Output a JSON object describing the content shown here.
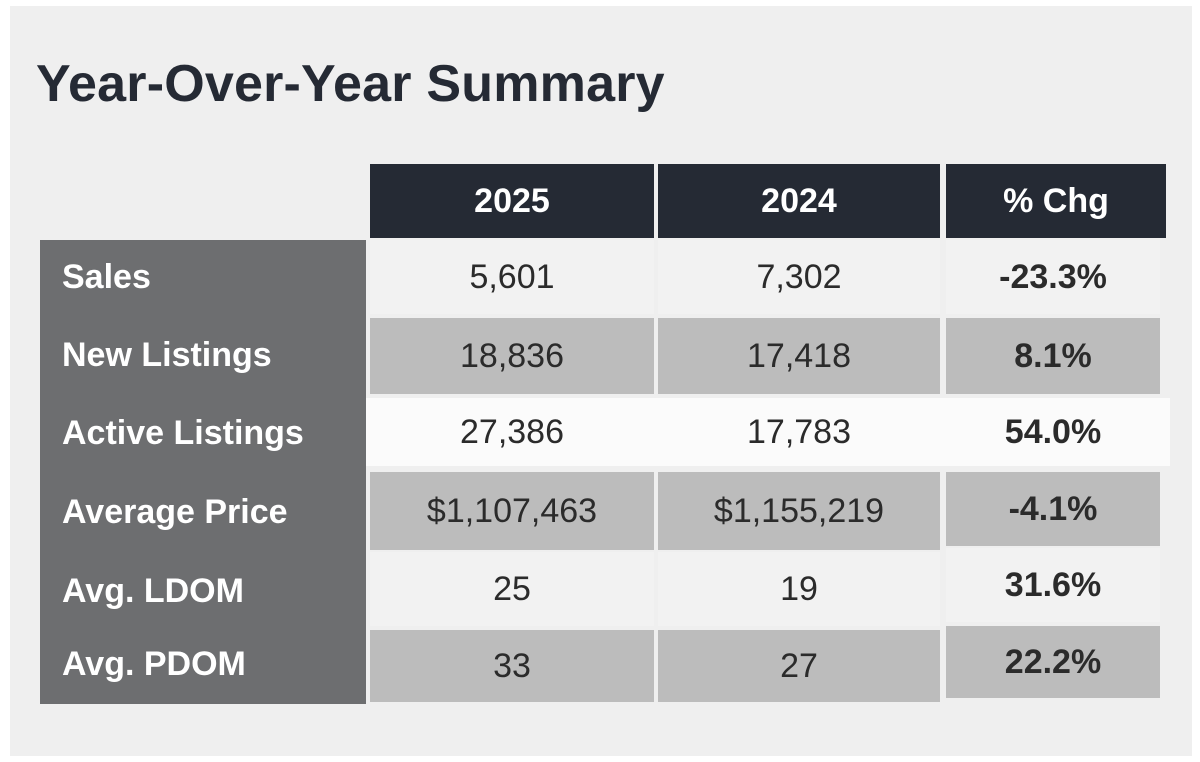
{
  "title": "Year-Over-Year Summary",
  "columns": [
    "2025",
    "2024",
    "% Chg"
  ],
  "rows": [
    {
      "label": "Sales",
      "v2025": "5,601",
      "v2024": "7,302",
      "chg": "-23.3%"
    },
    {
      "label": "New Listings",
      "v2025": "18,836",
      "v2024": "17,418",
      "chg": "8.1%"
    },
    {
      "label": "Active Listings",
      "v2025": "27,386",
      "v2024": "17,783",
      "chg": "54.0%"
    },
    {
      "label": "Average Price",
      "v2025": "$1,107,463",
      "v2024": "$1,155,219",
      "chg": "-4.1%"
    },
    {
      "label": "Avg. LDOM",
      "v2025": "25",
      "v2024": "19",
      "chg": "31.6%"
    },
    {
      "label": "Avg. PDOM",
      "v2025": "33",
      "v2024": "27",
      "chg": "22.2%"
    }
  ],
  "colors": {
    "header_bg": "#252a34",
    "label_col_bg": "#6d6e70",
    "row_light": "#f2f2f2",
    "row_dark": "#bcbcbc",
    "frame_bg": "#efefef"
  }
}
